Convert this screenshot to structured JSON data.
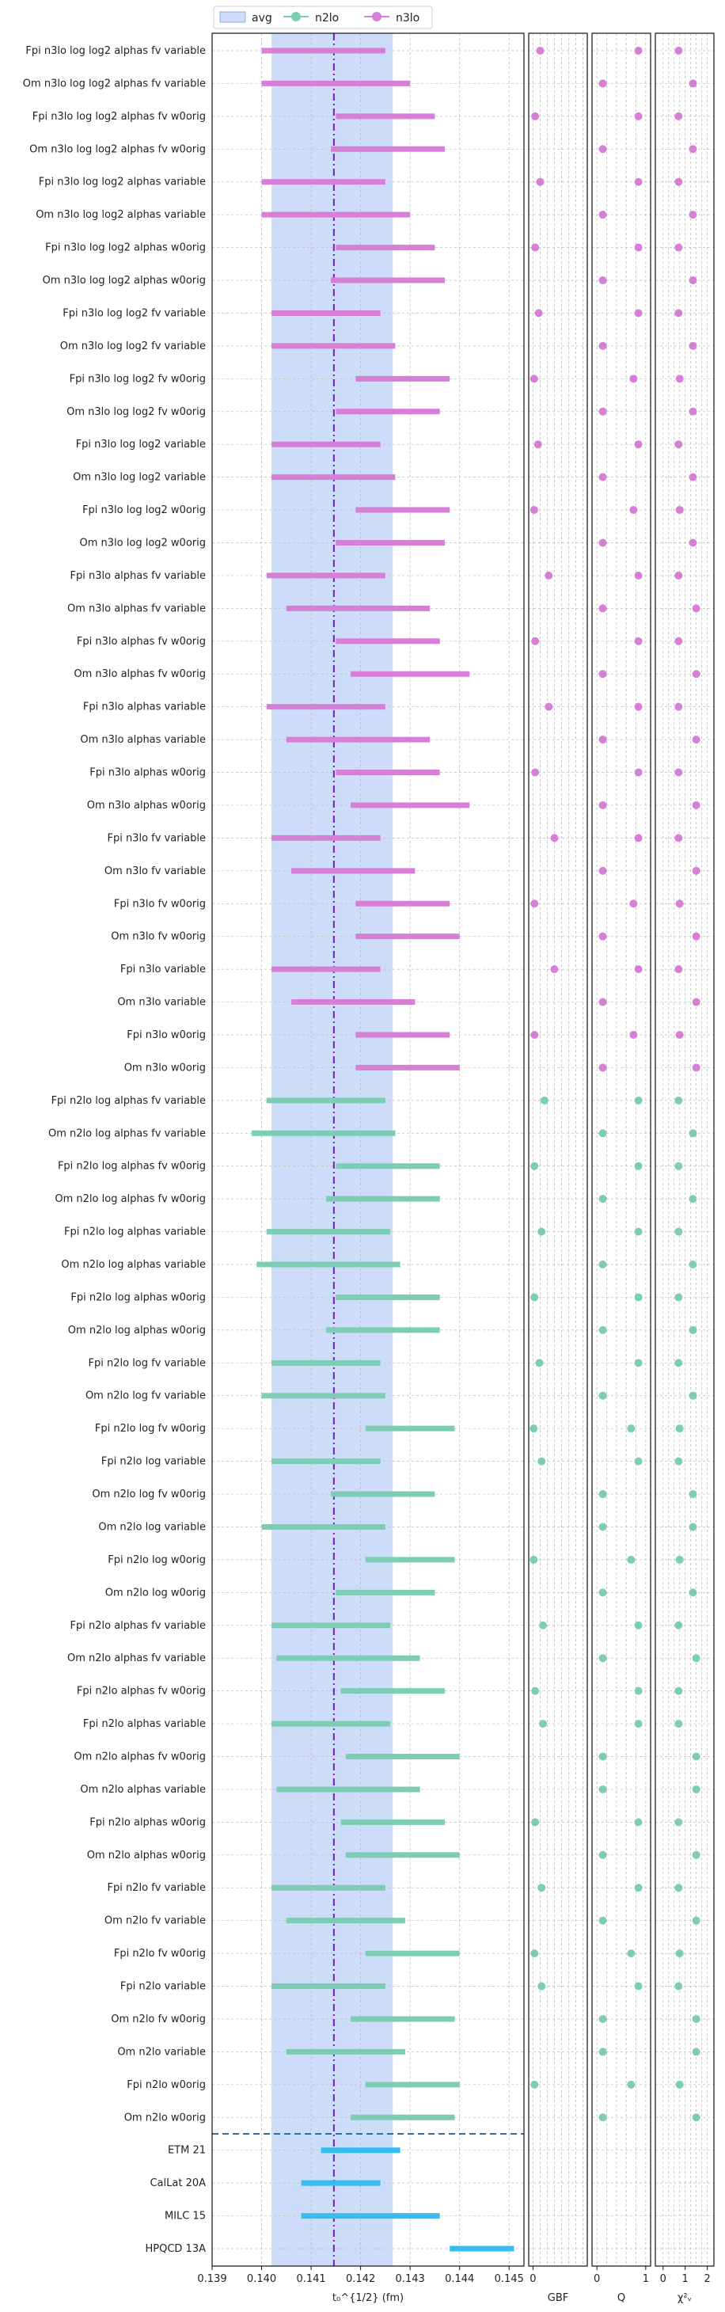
{
  "colors": {
    "n2lo": "#7dcdb4",
    "n3lo": "#d77fd7",
    "lit": "#36bcee",
    "avg_band": "#cddcf8",
    "avg_line": "#7a18c8",
    "separator": "#2a6fae",
    "grid": "#bbbbbb"
  },
  "chart_data": {
    "type": "scatter",
    "legend": {
      "position": "top-left",
      "entries": [
        "avg",
        "n2lo",
        "n3lo"
      ]
    },
    "avg": {
      "center": 0.14146,
      "low": 0.1402,
      "high": 0.14265
    },
    "panels": [
      {
        "key": "main",
        "xlabel": "t₀^{1/2} (fm)",
        "xlim": [
          0.139,
          0.1453
        ],
        "ticks": [
          "0.139",
          "0.140",
          "0.141",
          "0.142",
          "0.143",
          "0.144",
          "0.145"
        ],
        "tickvals": [
          0.139,
          0.14,
          0.141,
          0.142,
          0.143,
          0.144,
          0.145
        ]
      },
      {
        "key": "gbf",
        "xlabel": "GBF",
        "xlim": [
          -0.3,
          3.8
        ],
        "ticks": [
          "0"
        ],
        "tickvals": [
          0
        ]
      },
      {
        "key": "q",
        "xlabel": "Q",
        "xlim": [
          -0.1,
          1.1
        ],
        "ticks": [
          "0",
          "1"
        ],
        "tickvals": [
          0,
          1
        ]
      },
      {
        "key": "chi",
        "xlabel": "χ²ᵥ",
        "xlim": [
          -0.35,
          2.3
        ],
        "ticks": [
          "0",
          "1",
          "2"
        ],
        "tickvals": [
          0,
          1,
          2
        ]
      }
    ],
    "rows": [
      {
        "label": "Fpi n3lo log log2 alphas fv variable",
        "order": "n3lo",
        "low": 0.14,
        "high": 0.1425,
        "gbf": 0.5,
        "q": 0.85,
        "chi": 0.7
      },
      {
        "label": "Om n3lo log log2 alphas fv variable",
        "order": "n3lo",
        "low": 0.14,
        "high": 0.143,
        "gbf": null,
        "q": 0.12,
        "chi": 1.35
      },
      {
        "label": "Fpi n3lo log log2 alphas fv w0orig",
        "order": "n3lo",
        "low": 0.1415,
        "high": 0.1435,
        "gbf": 0.15,
        "q": 0.85,
        "chi": 0.7
      },
      {
        "label": "Om n3lo log log2 alphas fv w0orig",
        "order": "n3lo",
        "low": 0.1414,
        "high": 0.1437,
        "gbf": null,
        "q": 0.12,
        "chi": 1.35
      },
      {
        "label": "Fpi n3lo log log2 alphas variable",
        "order": "n3lo",
        "low": 0.14,
        "high": 0.1425,
        "gbf": 0.5,
        "q": 0.85,
        "chi": 0.7
      },
      {
        "label": "Om n3lo log log2 alphas variable",
        "order": "n3lo",
        "low": 0.14,
        "high": 0.143,
        "gbf": null,
        "q": 0.12,
        "chi": 1.35
      },
      {
        "label": "Fpi n3lo log log2 alphas w0orig",
        "order": "n3lo",
        "low": 0.1415,
        "high": 0.1435,
        "gbf": 0.15,
        "q": 0.85,
        "chi": 0.7
      },
      {
        "label": "Om n3lo log log2 alphas w0orig",
        "order": "n3lo",
        "low": 0.1414,
        "high": 0.1437,
        "gbf": null,
        "q": 0.12,
        "chi": 1.35
      },
      {
        "label": "Fpi n3lo log log2 fv variable",
        "order": "n3lo",
        "low": 0.1402,
        "high": 0.1424,
        "gbf": 0.4,
        "q": 0.85,
        "chi": 0.7
      },
      {
        "label": "Om n3lo log log2 fv variable",
        "order": "n3lo",
        "low": 0.1402,
        "high": 0.1427,
        "gbf": null,
        "q": 0.12,
        "chi": 1.35
      },
      {
        "label": "Fpi n3lo log log2 fv w0orig",
        "order": "n3lo",
        "low": 0.1419,
        "high": 0.1438,
        "gbf": 0.08,
        "q": 0.75,
        "chi": 0.75
      },
      {
        "label": "Om n3lo log log2 fv w0orig",
        "order": "n3lo",
        "low": 0.1415,
        "high": 0.1436,
        "gbf": null,
        "q": 0.12,
        "chi": 1.35
      },
      {
        "label": "Fpi n3lo log log2 variable",
        "order": "n3lo",
        "low": 0.1402,
        "high": 0.1424,
        "gbf": 0.35,
        "q": 0.85,
        "chi": 0.7
      },
      {
        "label": "Om n3lo log log2 variable",
        "order": "n3lo",
        "low": 0.1402,
        "high": 0.1427,
        "gbf": null,
        "q": 0.12,
        "chi": 1.35
      },
      {
        "label": "Fpi n3lo log log2 w0orig",
        "order": "n3lo",
        "low": 0.1419,
        "high": 0.1438,
        "gbf": 0.08,
        "q": 0.75,
        "chi": 0.75
      },
      {
        "label": "Om n3lo log log2 w0orig",
        "order": "n3lo",
        "low": 0.1415,
        "high": 0.1437,
        "gbf": null,
        "q": 0.12,
        "chi": 1.35
      },
      {
        "label": "Fpi n3lo alphas fv variable",
        "order": "n3lo",
        "low": 0.1401,
        "high": 0.1425,
        "gbf": 1.1,
        "q": 0.85,
        "chi": 0.7
      },
      {
        "label": "Om n3lo alphas fv variable",
        "order": "n3lo",
        "low": 0.1405,
        "high": 0.1434,
        "gbf": null,
        "q": 0.12,
        "chi": 1.5
      },
      {
        "label": "Fpi n3lo alphas fv w0orig",
        "order": "n3lo",
        "low": 0.1415,
        "high": 0.1436,
        "gbf": 0.15,
        "q": 0.85,
        "chi": 0.7
      },
      {
        "label": "Om n3lo alphas fv w0orig",
        "order": "n3lo",
        "low": 0.1418,
        "high": 0.1442,
        "gbf": null,
        "q": 0.12,
        "chi": 1.5
      },
      {
        "label": "Fpi n3lo alphas variable",
        "order": "n3lo",
        "low": 0.1401,
        "high": 0.1425,
        "gbf": 1.1,
        "q": 0.85,
        "chi": 0.7
      },
      {
        "label": "Om n3lo alphas variable",
        "order": "n3lo",
        "low": 0.1405,
        "high": 0.1434,
        "gbf": null,
        "q": 0.12,
        "chi": 1.5
      },
      {
        "label": "Fpi n3lo alphas w0orig",
        "order": "n3lo",
        "low": 0.1415,
        "high": 0.1436,
        "gbf": 0.15,
        "q": 0.85,
        "chi": 0.7
      },
      {
        "label": "Om n3lo alphas w0orig",
        "order": "n3lo",
        "low": 0.1418,
        "high": 0.1442,
        "gbf": null,
        "q": 0.12,
        "chi": 1.5
      },
      {
        "label": "Fpi n3lo fv variable",
        "order": "n3lo",
        "low": 0.1402,
        "high": 0.1424,
        "gbf": 1.5,
        "q": 0.85,
        "chi": 0.7
      },
      {
        "label": "Om n3lo fv variable",
        "order": "n3lo",
        "low": 0.1406,
        "high": 0.1431,
        "gbf": null,
        "q": 0.12,
        "chi": 1.5
      },
      {
        "label": "Fpi n3lo fv w0orig",
        "order": "n3lo",
        "low": 0.1419,
        "high": 0.1438,
        "gbf": 0.1,
        "q": 0.75,
        "chi": 0.75
      },
      {
        "label": "Om n3lo fv w0orig",
        "order": "n3lo",
        "low": 0.1419,
        "high": 0.144,
        "gbf": null,
        "q": 0.12,
        "chi": 1.5
      },
      {
        "label": "Fpi n3lo variable",
        "order": "n3lo",
        "low": 0.1402,
        "high": 0.1424,
        "gbf": 1.5,
        "q": 0.85,
        "chi": 0.7
      },
      {
        "label": "Om n3lo variable",
        "order": "n3lo",
        "low": 0.1406,
        "high": 0.1431,
        "gbf": null,
        "q": 0.12,
        "chi": 1.5
      },
      {
        "label": "Fpi n3lo w0orig",
        "order": "n3lo",
        "low": 0.1419,
        "high": 0.1438,
        "gbf": 0.1,
        "q": 0.75,
        "chi": 0.75
      },
      {
        "label": "Om n3lo w0orig",
        "order": "n3lo",
        "low": 0.1419,
        "high": 0.144,
        "gbf": null,
        "q": 0.12,
        "chi": 1.5
      },
      {
        "label": "Fpi n2lo log alphas fv variable",
        "order": "n2lo",
        "low": 0.1401,
        "high": 0.1425,
        "gbf": 0.8,
        "q": 0.85,
        "chi": 0.7
      },
      {
        "label": "Om n2lo log alphas fv variable",
        "order": "n2lo",
        "low": 0.1398,
        "high": 0.1427,
        "gbf": null,
        "q": 0.12,
        "chi": 1.35
      },
      {
        "label": "Fpi n2lo log alphas fv w0orig",
        "order": "n2lo",
        "low": 0.1415,
        "high": 0.1436,
        "gbf": 0.1,
        "q": 0.85,
        "chi": 0.7
      },
      {
        "label": "Om n2lo log alphas fv w0orig",
        "order": "n2lo",
        "low": 0.1413,
        "high": 0.1436,
        "gbf": null,
        "q": 0.12,
        "chi": 1.35
      },
      {
        "label": "Fpi n2lo log alphas variable",
        "order": "n2lo",
        "low": 0.1401,
        "high": 0.1426,
        "gbf": 0.6,
        "q": 0.85,
        "chi": 0.7
      },
      {
        "label": "Om n2lo log alphas variable",
        "order": "n2lo",
        "low": 0.1399,
        "high": 0.1428,
        "gbf": null,
        "q": 0.12,
        "chi": 1.35
      },
      {
        "label": "Fpi n2lo log alphas w0orig",
        "order": "n2lo",
        "low": 0.1415,
        "high": 0.1436,
        "gbf": 0.1,
        "q": 0.85,
        "chi": 0.7
      },
      {
        "label": "Om n2lo log alphas w0orig",
        "order": "n2lo",
        "low": 0.1413,
        "high": 0.1436,
        "gbf": null,
        "q": 0.12,
        "chi": 1.35
      },
      {
        "label": "Fpi n2lo log fv variable",
        "order": "n2lo",
        "low": 0.1402,
        "high": 0.1424,
        "gbf": 0.45,
        "q": 0.85,
        "chi": 0.7
      },
      {
        "label": "Om n2lo log fv variable",
        "order": "n2lo",
        "low": 0.14,
        "high": 0.1425,
        "gbf": null,
        "q": 0.12,
        "chi": 1.35
      },
      {
        "label": "Fpi n2lo log fv w0orig",
        "order": "n2lo",
        "low": 0.1421,
        "high": 0.1439,
        "gbf": 0.05,
        "q": 0.7,
        "chi": 0.75
      },
      {
        "label": "Fpi n2lo log variable",
        "order": "n2lo",
        "low": 0.1402,
        "high": 0.1424,
        "gbf": 0.6,
        "q": 0.85,
        "chi": 0.7
      },
      {
        "label": "Om n2lo log fv w0orig",
        "order": "n2lo",
        "low": 0.1414,
        "high": 0.1435,
        "gbf": null,
        "q": 0.12,
        "chi": 1.35
      },
      {
        "label": "Om n2lo log variable",
        "order": "n2lo",
        "low": 0.14,
        "high": 0.1425,
        "gbf": null,
        "q": 0.12,
        "chi": 1.35
      },
      {
        "label": "Fpi n2lo log w0orig",
        "order": "n2lo",
        "low": 0.1421,
        "high": 0.1439,
        "gbf": 0.05,
        "q": 0.7,
        "chi": 0.75
      },
      {
        "label": "Om n2lo log w0orig",
        "order": "n2lo",
        "low": 0.1415,
        "high": 0.1435,
        "gbf": null,
        "q": 0.12,
        "chi": 1.35
      },
      {
        "label": "Fpi n2lo alphas fv variable",
        "order": "n2lo",
        "low": 0.1402,
        "high": 0.1426,
        "gbf": 0.7,
        "q": 0.85,
        "chi": 0.7
      },
      {
        "label": "Om n2lo alphas fv variable",
        "order": "n2lo",
        "low": 0.1403,
        "high": 0.1432,
        "gbf": null,
        "q": 0.12,
        "chi": 1.5
      },
      {
        "label": "Fpi n2lo alphas fv w0orig",
        "order": "n2lo",
        "low": 0.1416,
        "high": 0.1437,
        "gbf": 0.15,
        "q": 0.85,
        "chi": 0.7
      },
      {
        "label": "Fpi n2lo alphas variable",
        "order": "n2lo",
        "low": 0.1402,
        "high": 0.1426,
        "gbf": 0.7,
        "q": 0.85,
        "chi": 0.7
      },
      {
        "label": "Om n2lo alphas fv w0orig",
        "order": "n2lo",
        "low": 0.1417,
        "high": 0.144,
        "gbf": null,
        "q": 0.12,
        "chi": 1.5
      },
      {
        "label": "Om n2lo alphas variable",
        "order": "n2lo",
        "low": 0.1403,
        "high": 0.1432,
        "gbf": null,
        "q": 0.12,
        "chi": 1.5
      },
      {
        "label": "Fpi n2lo alphas w0orig",
        "order": "n2lo",
        "low": 0.1416,
        "high": 0.1437,
        "gbf": 0.15,
        "q": 0.85,
        "chi": 0.7
      },
      {
        "label": "Om n2lo alphas w0orig",
        "order": "n2lo",
        "low": 0.1417,
        "high": 0.144,
        "gbf": null,
        "q": 0.12,
        "chi": 1.5
      },
      {
        "label": "Fpi n2lo fv variable",
        "order": "n2lo",
        "low": 0.1402,
        "high": 0.1425,
        "gbf": 0.6,
        "q": 0.85,
        "chi": 0.7
      },
      {
        "label": "Om n2lo fv variable",
        "order": "n2lo",
        "low": 0.1405,
        "high": 0.1429,
        "gbf": null,
        "q": 0.12,
        "chi": 1.5
      },
      {
        "label": "Fpi n2lo fv w0orig",
        "order": "n2lo",
        "low": 0.1421,
        "high": 0.144,
        "gbf": 0.1,
        "q": 0.7,
        "chi": 0.75
      },
      {
        "label": "Fpi n2lo variable",
        "order": "n2lo",
        "low": 0.1402,
        "high": 0.1425,
        "gbf": 0.6,
        "q": 0.85,
        "chi": 0.7
      },
      {
        "label": "Om n2lo fv w0orig",
        "order": "n2lo",
        "low": 0.1418,
        "high": 0.1439,
        "gbf": null,
        "q": 0.12,
        "chi": 1.5
      },
      {
        "label": "Om n2lo variable",
        "order": "n2lo",
        "low": 0.1405,
        "high": 0.1429,
        "gbf": null,
        "q": 0.12,
        "chi": 1.5
      },
      {
        "label": "Fpi n2lo w0orig",
        "order": "n2lo",
        "low": 0.1421,
        "high": 0.144,
        "gbf": 0.1,
        "q": 0.7,
        "chi": 0.75
      },
      {
        "label": "Om n2lo w0orig",
        "order": "n2lo",
        "low": 0.1418,
        "high": 0.1439,
        "gbf": null,
        "q": 0.12,
        "chi": 1.5
      },
      {
        "label": "ETM 21",
        "order": "lit",
        "low": 0.1412,
        "high": 0.1428
      },
      {
        "label": "CalLat 20A",
        "order": "lit",
        "low": 0.1408,
        "high": 0.1424
      },
      {
        "label": "MILC 15",
        "order": "lit",
        "low": 0.1408,
        "high": 0.1436
      },
      {
        "label": "HPQCD 13A",
        "order": "lit",
        "low": 0.1438,
        "high": 0.1451
      }
    ]
  }
}
